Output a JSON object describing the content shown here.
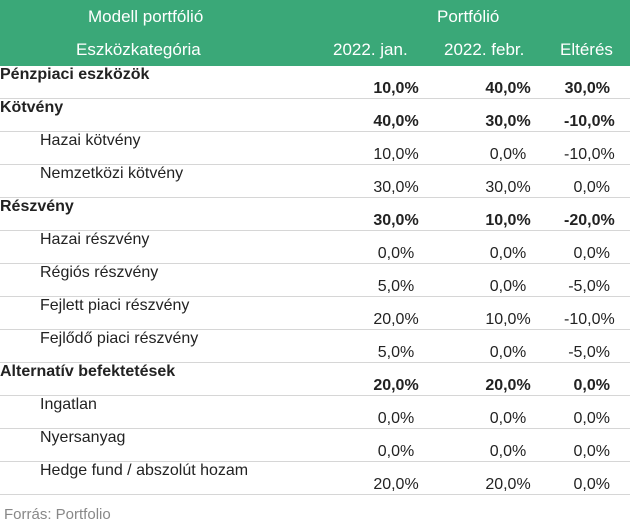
{
  "header": {
    "model_portfolio": "Modell portfólió",
    "portfolio": "Portfólió",
    "asset_class": "Eszközkategória",
    "col_jan": "2022. jan.",
    "col_feb": "2022. febr.",
    "col_diff": "Eltérés"
  },
  "rows": [
    {
      "label": "Pénzpiaci eszközök",
      "jan": "10,0%",
      "feb": "40,0%",
      "diff": "30,0%",
      "level": "category"
    },
    {
      "label": "Kötvény",
      "jan": "40,0%",
      "feb": "30,0%",
      "diff": "-10,0%",
      "level": "category"
    },
    {
      "label": "Hazai kötvény",
      "jan": "10,0%",
      "feb": "0,0%",
      "diff": "-10,0%",
      "level": "sub"
    },
    {
      "label": "Nemzetközi kötvény",
      "jan": "30,0%",
      "feb": "30,0%",
      "diff": "0,0%",
      "level": "sub"
    },
    {
      "label": "Részvény",
      "jan": "30,0%",
      "feb": "10,0%",
      "diff": "-20,0%",
      "level": "category"
    },
    {
      "label": "Hazai részvény",
      "jan": "0,0%",
      "feb": "0,0%",
      "diff": "0,0%",
      "level": "sub"
    },
    {
      "label": "Régiós részvény",
      "jan": "5,0%",
      "feb": "0,0%",
      "diff": "-5,0%",
      "level": "sub"
    },
    {
      "label": "Fejlett piaci részvény",
      "jan": "20,0%",
      "feb": "10,0%",
      "diff": "-10,0%",
      "level": "sub"
    },
    {
      "label": "Fejlődő piaci részvény",
      "jan": "5,0%",
      "feb": "0,0%",
      "diff": "-5,0%",
      "level": "sub"
    },
    {
      "label": "Alternatív befektetések",
      "jan": "20,0%",
      "feb": "20,0%",
      "diff": "0,0%",
      "level": "category"
    },
    {
      "label": "Ingatlan",
      "jan": "0,0%",
      "feb": "0,0%",
      "diff": "0,0%",
      "level": "sub"
    },
    {
      "label": "Nyersanyag",
      "jan": "0,0%",
      "feb": "0,0%",
      "diff": "0,0%",
      "level": "sub"
    },
    {
      "label": "Hedge fund / abszolút hozam",
      "jan": "20,0%",
      "feb": "20,0%",
      "diff": "0,0%",
      "level": "sub"
    }
  ],
  "source": "Forrás: Portfolio",
  "colors": {
    "header_bg": "#3aa878",
    "header_text": "#ffffff",
    "source_text": "#888888"
  }
}
